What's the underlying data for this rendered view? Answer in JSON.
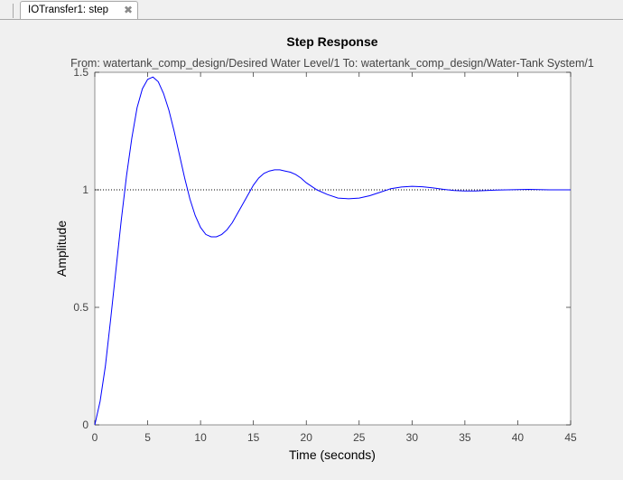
{
  "tab": {
    "label": "IOTransfer1: step",
    "close_symbol": "✖"
  },
  "chart_data": {
    "type": "line",
    "title": "Step Response",
    "subtitle": "From: watertank_comp_design/Desired  Water Level/1  To: watertank_comp_design/Water-Tank System/1",
    "xlabel": "Time (seconds)",
    "ylabel": "Amplitude",
    "xlim": [
      0,
      45
    ],
    "ylim": [
      0,
      1.5
    ],
    "xticks": [
      0,
      5,
      10,
      15,
      20,
      25,
      30,
      35,
      40,
      45
    ],
    "yticks": [
      0,
      0.5,
      1,
      1.5
    ],
    "xtick_labels": [
      "0",
      "5",
      "10",
      "15",
      "20",
      "25",
      "30",
      "35",
      "40",
      "45"
    ],
    "ytick_labels": [
      "0",
      "0.5",
      "1",
      "1.5"
    ],
    "grid": false,
    "reference_line": {
      "y": 1,
      "style": "dotted",
      "color": "#000000"
    },
    "series": [
      {
        "color": "#0000ff",
        "x": [
          0,
          0.5,
          1,
          1.5,
          2,
          2.5,
          3,
          3.5,
          4,
          4.5,
          5,
          5.5,
          6,
          6.5,
          7,
          7.5,
          8,
          8.5,
          9,
          9.5,
          10,
          10.5,
          11,
          11.5,
          12,
          12.5,
          13,
          13.5,
          14,
          14.5,
          15,
          15.5,
          16,
          16.5,
          17,
          17.5,
          18,
          18.5,
          19,
          19.5,
          20,
          21,
          22,
          23,
          24,
          25,
          26,
          27,
          28,
          29,
          30,
          31,
          32,
          33,
          34,
          35,
          36,
          37,
          38,
          39,
          40,
          41,
          42,
          43,
          44,
          45
        ],
        "y": [
          0.0,
          0.1,
          0.25,
          0.45,
          0.66,
          0.87,
          1.06,
          1.22,
          1.35,
          1.43,
          1.47,
          1.48,
          1.46,
          1.41,
          1.34,
          1.25,
          1.15,
          1.05,
          0.96,
          0.89,
          0.84,
          0.81,
          0.8,
          0.8,
          0.81,
          0.83,
          0.86,
          0.9,
          0.94,
          0.98,
          1.02,
          1.05,
          1.07,
          1.08,
          1.085,
          1.085,
          1.08,
          1.075,
          1.065,
          1.05,
          1.03,
          1.0,
          0.98,
          0.965,
          0.962,
          0.965,
          0.975,
          0.99,
          1.005,
          1.012,
          1.015,
          1.013,
          1.008,
          1.002,
          0.997,
          0.995,
          0.995,
          0.997,
          0.999,
          1.0,
          1.001,
          1.002,
          1.001,
          1.0,
          1.0,
          1.0
        ]
      }
    ]
  }
}
